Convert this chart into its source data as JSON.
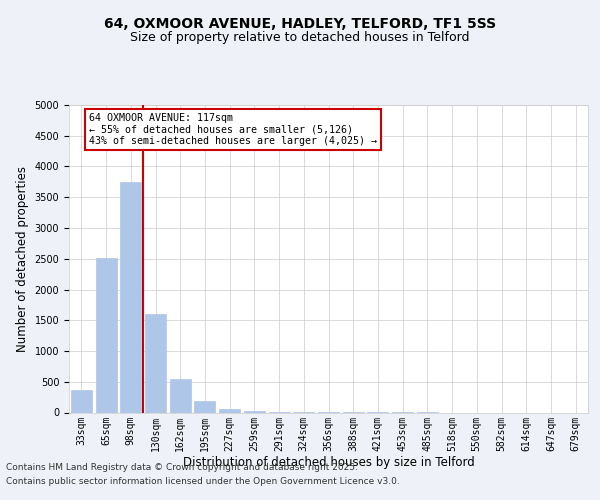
{
  "title_line1": "64, OXMOOR AVENUE, HADLEY, TELFORD, TF1 5SS",
  "title_line2": "Size of property relative to detached houses in Telford",
  "xlabel": "Distribution of detached houses by size in Telford",
  "ylabel": "Number of detached properties",
  "footnote1": "Contains HM Land Registry data © Crown copyright and database right 2025.",
  "footnote2": "Contains public sector information licensed under the Open Government Licence v3.0.",
  "categories": [
    "33sqm",
    "65sqm",
    "98sqm",
    "130sqm",
    "162sqm",
    "195sqm",
    "227sqm",
    "259sqm",
    "291sqm",
    "324sqm",
    "356sqm",
    "388sqm",
    "421sqm",
    "453sqm",
    "485sqm",
    "518sqm",
    "550sqm",
    "582sqm",
    "614sqm",
    "647sqm",
    "679sqm"
  ],
  "values": [
    370,
    2520,
    3740,
    1600,
    540,
    185,
    65,
    30,
    15,
    8,
    5,
    3,
    2,
    1,
    1,
    0,
    0,
    0,
    0,
    0,
    0
  ],
  "bar_color": "#aec6e8",
  "vline_color": "#cc0000",
  "annotation_text_line1": "64 OXMOOR AVENUE: 117sqm",
  "annotation_text_line2": "← 55% of detached houses are smaller (5,126)",
  "annotation_text_line3": "43% of semi-detached houses are larger (4,025) →",
  "box_color": "#cc0000",
  "ylim": [
    0,
    5000
  ],
  "yticks": [
    0,
    500,
    1000,
    1500,
    2000,
    2500,
    3000,
    3500,
    4000,
    4500,
    5000
  ],
  "background_color": "#eef2f8",
  "plot_background": "#ffffff",
  "grid_color": "#cccccc",
  "title_fontsize": 10,
  "subtitle_fontsize": 9,
  "tick_fontsize": 7,
  "label_fontsize": 8.5,
  "footnote_fontsize": 6.5
}
